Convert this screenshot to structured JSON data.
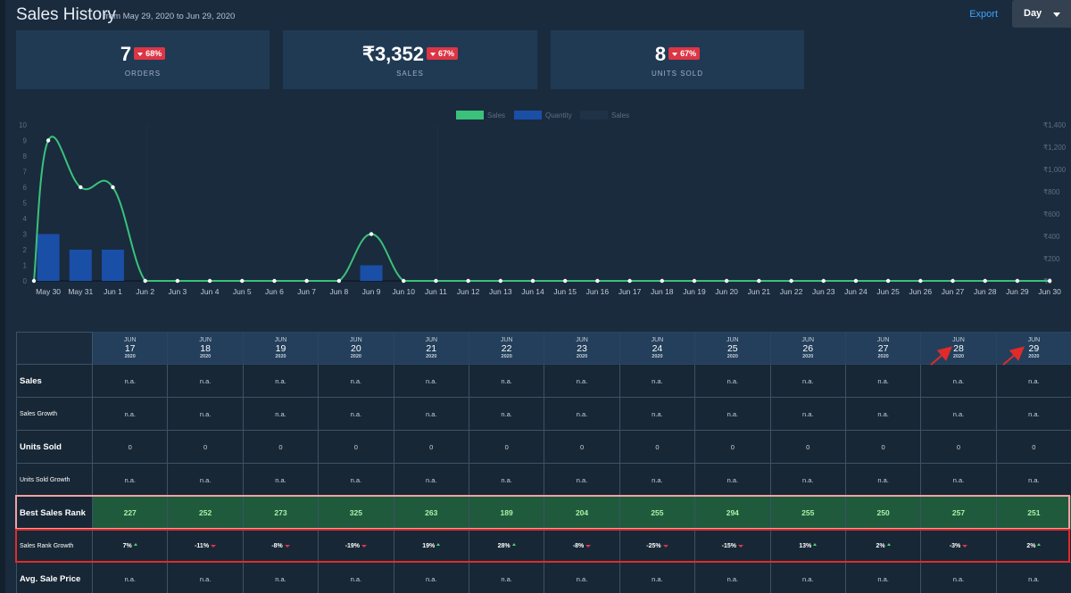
{
  "header": {
    "title": "Sales History",
    "subtitle": "from May 29, 2020 to Jun 29, 2020",
    "export_label": "Export",
    "period_selected": "Day"
  },
  "cards": [
    {
      "value": "7",
      "change": "68%",
      "label": "ORDERS",
      "trend": "down"
    },
    {
      "value": "₹3,352",
      "change": "67%",
      "label": "SALES",
      "trend": "down"
    },
    {
      "value": "8",
      "change": "67%",
      "label": "UNITS SOLD",
      "trend": "down"
    }
  ],
  "chart_data": {
    "type": "line",
    "legend": [
      {
        "label": "Sales",
        "color": "#3ac27a"
      },
      {
        "label": "Quantity",
        "color": "#1a4fa8"
      },
      {
        "label": "Sales",
        "color": "#1f3246"
      }
    ],
    "legend_position": "top",
    "x": [
      "May 30",
      "May 31",
      "Jun 1",
      "Jun 2",
      "Jun 3",
      "Jun 4",
      "Jun 5",
      "Jun 6",
      "Jun 7",
      "Jun 8",
      "Jun 9",
      "Jun 10",
      "Jun 11",
      "Jun 12",
      "Jun 13",
      "Jun 14",
      "Jun 15",
      "Jun 16",
      "Jun 17",
      "Jun 18",
      "Jun 19",
      "Jun 20",
      "Jun 21",
      "Jun 22",
      "Jun 23",
      "Jun 24",
      "Jun 25",
      "Jun 26",
      "Jun 27",
      "Jun 28",
      "Jun 29",
      "Jun 30"
    ],
    "series": [
      {
        "name": "Sales",
        "type": "line",
        "color": "#3ac27a",
        "axis": "left",
        "values": [
          9,
          6,
          6,
          0,
          0,
          0,
          0,
          0,
          0,
          0,
          3,
          0,
          0,
          0,
          0,
          0,
          0,
          0,
          0,
          0,
          0,
          0,
          0,
          0,
          0,
          0,
          0,
          0,
          0,
          0,
          0,
          0
        ],
        "start_value": 0
      },
      {
        "name": "Quantity",
        "type": "bar",
        "color": "#1a4fa8",
        "axis": "left",
        "values": [
          3,
          2,
          2,
          0,
          0,
          0,
          0,
          0,
          0,
          0,
          1,
          0,
          0,
          0,
          0,
          0,
          0,
          0,
          0,
          0,
          0,
          0,
          0,
          0,
          0,
          0,
          0,
          0,
          0,
          0,
          0,
          0
        ]
      }
    ],
    "y_left": {
      "min": 0,
      "max": 10,
      "ticks": [
        "0",
        "1",
        "2",
        "3",
        "4",
        "5",
        "6",
        "7",
        "8",
        "9",
        "10"
      ]
    },
    "y_right": {
      "min": 0,
      "max": 1400,
      "ticks": [
        "₹0",
        "₹200",
        "₹400",
        "₹600",
        "₹800",
        "₹1,000",
        "₹1,200",
        "₹1,400"
      ]
    },
    "grid": true
  },
  "table": {
    "columns": [
      {
        "month": "JUN",
        "day": "17",
        "year": "2020"
      },
      {
        "month": "JUN",
        "day": "18",
        "year": "2020"
      },
      {
        "month": "JUN",
        "day": "19",
        "year": "2020"
      },
      {
        "month": "JUN",
        "day": "20",
        "year": "2020"
      },
      {
        "month": "JUN",
        "day": "21",
        "year": "2020"
      },
      {
        "month": "JUN",
        "day": "22",
        "year": "2020"
      },
      {
        "month": "JUN",
        "day": "23",
        "year": "2020"
      },
      {
        "month": "JUN",
        "day": "24",
        "year": "2020"
      },
      {
        "month": "JUN",
        "day": "25",
        "year": "2020"
      },
      {
        "month": "JUN",
        "day": "26",
        "year": "2020"
      },
      {
        "month": "JUN",
        "day": "27",
        "year": "2020"
      },
      {
        "month": "JUN",
        "day": "28",
        "year": "2020"
      },
      {
        "month": "JUN",
        "day": "29",
        "year": "2020"
      }
    ],
    "rows": [
      {
        "label": "Sales",
        "style": "big",
        "cells": [
          "n.a.",
          "n.a.",
          "n.a.",
          "n.a.",
          "n.a.",
          "n.a.",
          "n.a.",
          "n.a.",
          "n.a.",
          "n.a.",
          "n.a.",
          "n.a.",
          "n.a."
        ]
      },
      {
        "label": "Sales Growth",
        "style": "small",
        "cells": [
          "n.a.",
          "n.a.",
          "n.a.",
          "n.a.",
          "n.a.",
          "n.a.",
          "n.a.",
          "n.a.",
          "n.a.",
          "n.a.",
          "n.a.",
          "n.a.",
          "n.a."
        ]
      },
      {
        "label": "Units Sold",
        "style": "big",
        "cells": [
          "0",
          "0",
          "0",
          "0",
          "0",
          "0",
          "0",
          "0",
          "0",
          "0",
          "0",
          "0",
          "0"
        ]
      },
      {
        "label": "Units Sold Growth",
        "style": "small",
        "cells": [
          "n.a.",
          "n.a.",
          "n.a.",
          "n.a.",
          "n.a.",
          "n.a.",
          "n.a.",
          "n.a.",
          "n.a.",
          "n.a.",
          "n.a.",
          "n.a.",
          "n.a."
        ]
      },
      {
        "label": "Best Sales Rank",
        "style": "highlight",
        "cells": [
          "227",
          "252",
          "273",
          "325",
          "263",
          "189",
          "204",
          "255",
          "294",
          "255",
          "250",
          "257",
          "251"
        ]
      },
      {
        "label": "Sales Rank Growth",
        "style": "growth",
        "cells": [
          "7%",
          "-11%",
          "-8%",
          "-19%",
          "19%",
          "28%",
          "-8%",
          "-25%",
          "-15%",
          "13%",
          "2%",
          "-3%",
          "2%"
        ],
        "trends": [
          "up",
          "down",
          "down",
          "down",
          "up",
          "up",
          "down",
          "down",
          "down",
          "up",
          "up",
          "down",
          "up"
        ]
      },
      {
        "label": "Avg. Sale Price",
        "style": "big",
        "cells": [
          "n.a.",
          "n.a.",
          "n.a.",
          "n.a.",
          "n.a.",
          "n.a.",
          "n.a.",
          "n.a.",
          "n.a.",
          "n.a.",
          "n.a.",
          "n.a.",
          "n.a."
        ]
      }
    ]
  }
}
